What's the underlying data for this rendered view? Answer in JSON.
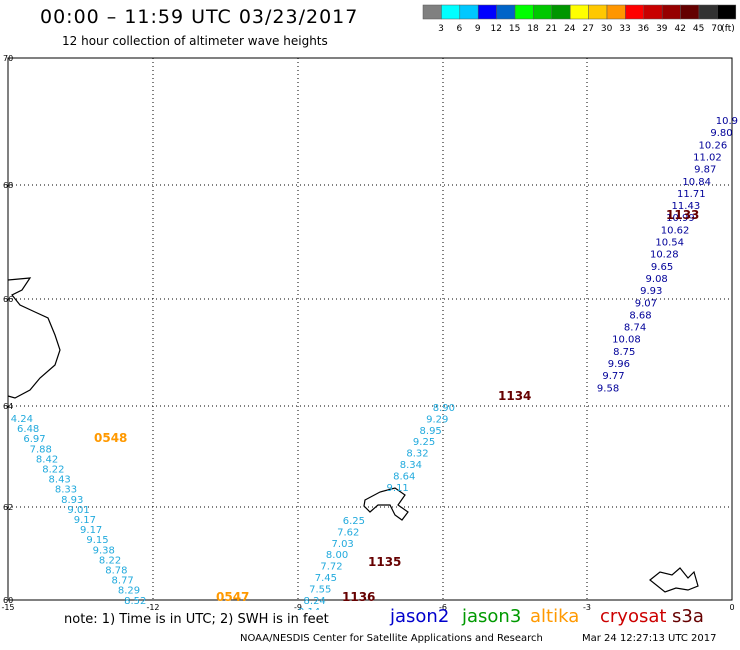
{
  "header": {
    "title": "00:00 – 11:59 UTC 03/23/2017",
    "subtitle": "12 hour collection of altimeter wave heights"
  },
  "legend": {
    "colors": [
      "#808080",
      "#00ffff",
      "#00c8ff",
      "#0000ff",
      "#0064c8",
      "#00ff00",
      "#00c800",
      "#009600",
      "#ffff00",
      "#ffc800",
      "#ff9600",
      "#ff0000",
      "#c80000",
      "#960000",
      "#640000",
      "#323232",
      "#000000"
    ],
    "labels": [
      "3",
      "6",
      "9",
      "12",
      "15",
      "18",
      "21",
      "24",
      "27",
      "30",
      "33",
      "36",
      "39",
      "42",
      "45",
      "70"
    ],
    "unit": "(ft)"
  },
  "axes": {
    "lat_ticks": [
      "70",
      "68",
      "66",
      "64",
      "62",
      "60"
    ],
    "lon_ticks": [
      "-15",
      "-12",
      "-9",
      "-6",
      "-3",
      "0"
    ]
  },
  "colors": {
    "jason2": "#0000cc",
    "jason3": "#009900",
    "altika": "#ff9900",
    "cryosat": "#cc0000",
    "s3a": "#660000",
    "light_blue": "#22aadd",
    "navy": "#000099",
    "time_orange": "#ff9900",
    "time_maroon": "#660000"
  },
  "tracks": [
    {
      "id": "track-1133",
      "color": "navy",
      "labels": [
        "10.9",
        "9.80",
        "10.26",
        "11.02",
        "9.87",
        "10.84",
        "11.71",
        "11.43",
        "10.99",
        "10.62",
        "10.54",
        "10.28",
        "9.65",
        "9.08",
        "9.93",
        "9.07",
        "8.68",
        "8.74",
        "10.08",
        "8.75",
        "9.96",
        "9.77",
        "9.58"
      ],
      "time": "1133",
      "time_color": "time_maroon"
    },
    {
      "id": "track-1134",
      "color": "light_blue",
      "labels": [
        "8.90",
        "9.29",
        "8.95",
        "9.25",
        "8.32",
        "8.34",
        "8.64",
        "9.11"
      ],
      "time": "1134",
      "time_color": "time_maroon"
    },
    {
      "id": "track-1135",
      "color": "light_blue",
      "labels": [
        "6.25",
        "7.62",
        "7.03",
        "8.00",
        "7.72",
        "7.45",
        "7.55",
        "8.24",
        "8.14"
      ],
      "time": "1135",
      "time_color": "time_maroon"
    },
    {
      "id": "track-1136",
      "time": "1136",
      "time_color": "time_maroon"
    },
    {
      "id": "track-0548",
      "color": "light_blue",
      "labels": [
        "4.24",
        "6.48",
        "6.97",
        "7.88",
        "8.42",
        "8.22",
        "8.43",
        "8.33",
        "8.93",
        "9.01",
        "9.17",
        "9.17",
        "9.15",
        "9.38",
        "8.22",
        "8.78",
        "8.77",
        "8.29",
        "8.52"
      ],
      "time": "0548",
      "time_color": "time_orange"
    },
    {
      "id": "track-0547",
      "time": "0547",
      "time_color": "time_orange"
    }
  ],
  "footer": {
    "note": "note:  1) Time is in UTC;  2) SWH is in feet",
    "satellites": [
      {
        "name": "jason2",
        "color": "jason2"
      },
      {
        "name": "jason3",
        "color": "jason3"
      },
      {
        "name": "altika",
        "color": "altika"
      },
      {
        "name": "cryosat",
        "color": "cryosat"
      },
      {
        "name": "s3a",
        "color": "s3a"
      }
    ],
    "credit": "NOAA/NESDIS Center for Satellite Applications and Research",
    "timestamp": "Mar 24 12:27:13 UTC 2017"
  }
}
